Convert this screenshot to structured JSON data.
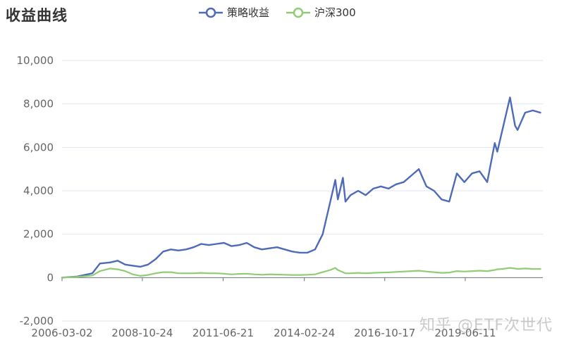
{
  "chart_data": {
    "type": "line",
    "title": "收益曲线",
    "x_tick_labels": [
      "2006-03-02",
      "2008-10-24",
      "2011-06-21",
      "2014-02-24",
      "2016-10-17",
      "2019-06-11"
    ],
    "ylim": [
      -2000,
      10000
    ],
    "y_ticks": [
      -2000,
      0,
      2000,
      4000,
      6000,
      8000,
      10000
    ],
    "y_tick_labels": [
      "-2,000",
      "0",
      "2,000",
      "4,000",
      "6,000",
      "8,000",
      "10,000"
    ],
    "grid": true,
    "legend_position": "top-center",
    "x": [
      "2006-03",
      "2006-09",
      "2007-03",
      "2007-06",
      "2007-10",
      "2008-01",
      "2008-04",
      "2008-07",
      "2008-10",
      "2009-01",
      "2009-04",
      "2009-07",
      "2009-10",
      "2010-01",
      "2010-04",
      "2010-07",
      "2010-10",
      "2011-01",
      "2011-04",
      "2011-07",
      "2011-10",
      "2012-01",
      "2012-04",
      "2012-07",
      "2012-10",
      "2013-01",
      "2013-04",
      "2013-07",
      "2013-10",
      "2014-01",
      "2014-04",
      "2014-07",
      "2014-10",
      "2015-01",
      "2015-03",
      "2015-04",
      "2015-06",
      "2015-07",
      "2015-09",
      "2015-12",
      "2016-03",
      "2016-06",
      "2016-09",
      "2016-12",
      "2017-03",
      "2017-06",
      "2017-09",
      "2017-12",
      "2018-03",
      "2018-06",
      "2018-09",
      "2018-12",
      "2019-03",
      "2019-06",
      "2019-09",
      "2019-12",
      "2020-03",
      "2020-06",
      "2020-07",
      "2020-09",
      "2020-12",
      "2021-02",
      "2021-03",
      "2021-06",
      "2021-09",
      "2021-12"
    ],
    "series": [
      {
        "name": "策略收益",
        "color": "#4e6bb8",
        "values": [
          0,
          50,
          200,
          650,
          700,
          780,
          600,
          550,
          500,
          600,
          850,
          1200,
          1300,
          1250,
          1300,
          1400,
          1550,
          1500,
          1550,
          1600,
          1450,
          1500,
          1600,
          1400,
          1300,
          1350,
          1400,
          1300,
          1200,
          1150,
          1150,
          1300,
          2000,
          3500,
          4500,
          3600,
          4600,
          3500,
          3800,
          4000,
          3800,
          4100,
          4200,
          4100,
          4300,
          4400,
          4700,
          5000,
          4200,
          4000,
          3600,
          3500,
          4800,
          4400,
          4800,
          4900,
          4400,
          6200,
          5800,
          6800,
          8300,
          7000,
          6800,
          7600,
          7700,
          7600
        ]
      },
      {
        "name": "沪深300",
        "color": "#91cc75",
        "values": [
          0,
          30,
          100,
          300,
          420,
          380,
          300,
          150,
          80,
          120,
          200,
          250,
          250,
          200,
          200,
          200,
          220,
          200,
          200,
          180,
          150,
          170,
          180,
          150,
          130,
          150,
          140,
          130,
          120,
          120,
          130,
          150,
          250,
          350,
          450,
          350,
          250,
          200,
          200,
          220,
          200,
          220,
          230,
          240,
          260,
          280,
          300,
          320,
          280,
          250,
          220,
          230,
          300,
          280,
          300,
          320,
          300,
          350,
          380,
          400,
          450,
          420,
          400,
          420,
          400,
          400
        ]
      }
    ]
  },
  "watermark": "知乎 @ETF次世代"
}
